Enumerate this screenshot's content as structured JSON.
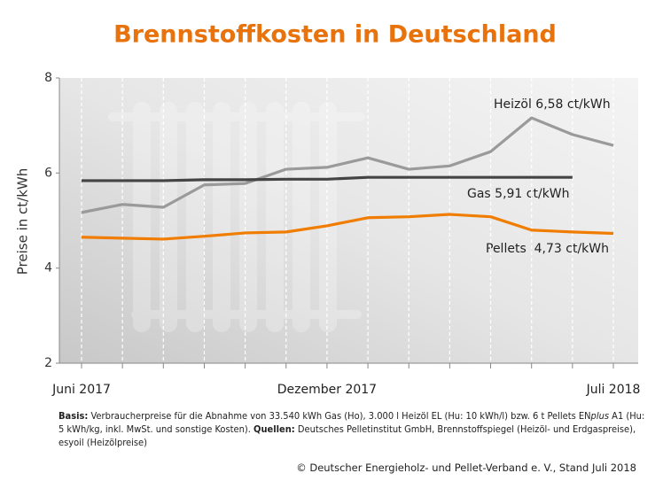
{
  "chart_data": {
    "type": "line",
    "title": "Brennstoffkosten in Deutschland",
    "y_label": "Preise in ct/kWh",
    "categories": [
      "Juni 2017",
      null,
      null,
      null,
      null,
      null,
      "Dezember 2017",
      null,
      null,
      null,
      null,
      null,
      null,
      "Juli 2018"
    ],
    "ylim": [
      2,
      8
    ],
    "yticks": [
      2,
      4,
      6,
      8
    ],
    "series": [
      {
        "name": "Heizöl",
        "color": "#9a9a9a",
        "values": [
          5.17,
          5.34,
          5.28,
          5.75,
          5.78,
          6.08,
          6.12,
          6.32,
          6.08,
          6.15,
          6.45,
          7.16,
          6.81,
          6.58
        ]
      },
      {
        "name": "Gas",
        "color": "#444444",
        "values": [
          5.84,
          5.84,
          5.84,
          5.86,
          5.86,
          5.87,
          5.87,
          5.91,
          5.91,
          5.91,
          5.91,
          5.91,
          5.91,
          null
        ]
      },
      {
        "name": "Pellets",
        "color": "#f07d00",
        "values": [
          4.65,
          4.63,
          4.61,
          4.67,
          4.74,
          4.76,
          4.89,
          5.06,
          5.08,
          5.13,
          5.08,
          4.8,
          4.76,
          4.73
        ]
      }
    ],
    "annotations": [
      "Heizöl 6,58 ct/kWh",
      "Gas 5,91 ct/kWh",
      "Pellets  4,73 ct/kWh"
    ]
  },
  "notes": {
    "basis_label": "Basis:",
    "basis_text_1": "Verbraucherpreise für die Abnahme von 33.540 kWh Gas (Ho), 3.000 l Heizöl EL (Hu: 10 kWh/l) bzw. 6 t Pellets EN",
    "basis_italic": "plus",
    "basis_text_2": "A1 (Hu: 5 kWh/kg, inkl. MwSt. und sonstige Kosten).",
    "sources_label": "Quellen:",
    "sources_text": "Deutsches Pelletinstitut GmbH, Brennstoffspiegel (Heizöl- und Erdgaspreise), esyoil (Heizölpreise)"
  },
  "footer": "© Deutscher Energieholz- und Pellet-Verband e. V., Stand Juli 2018"
}
